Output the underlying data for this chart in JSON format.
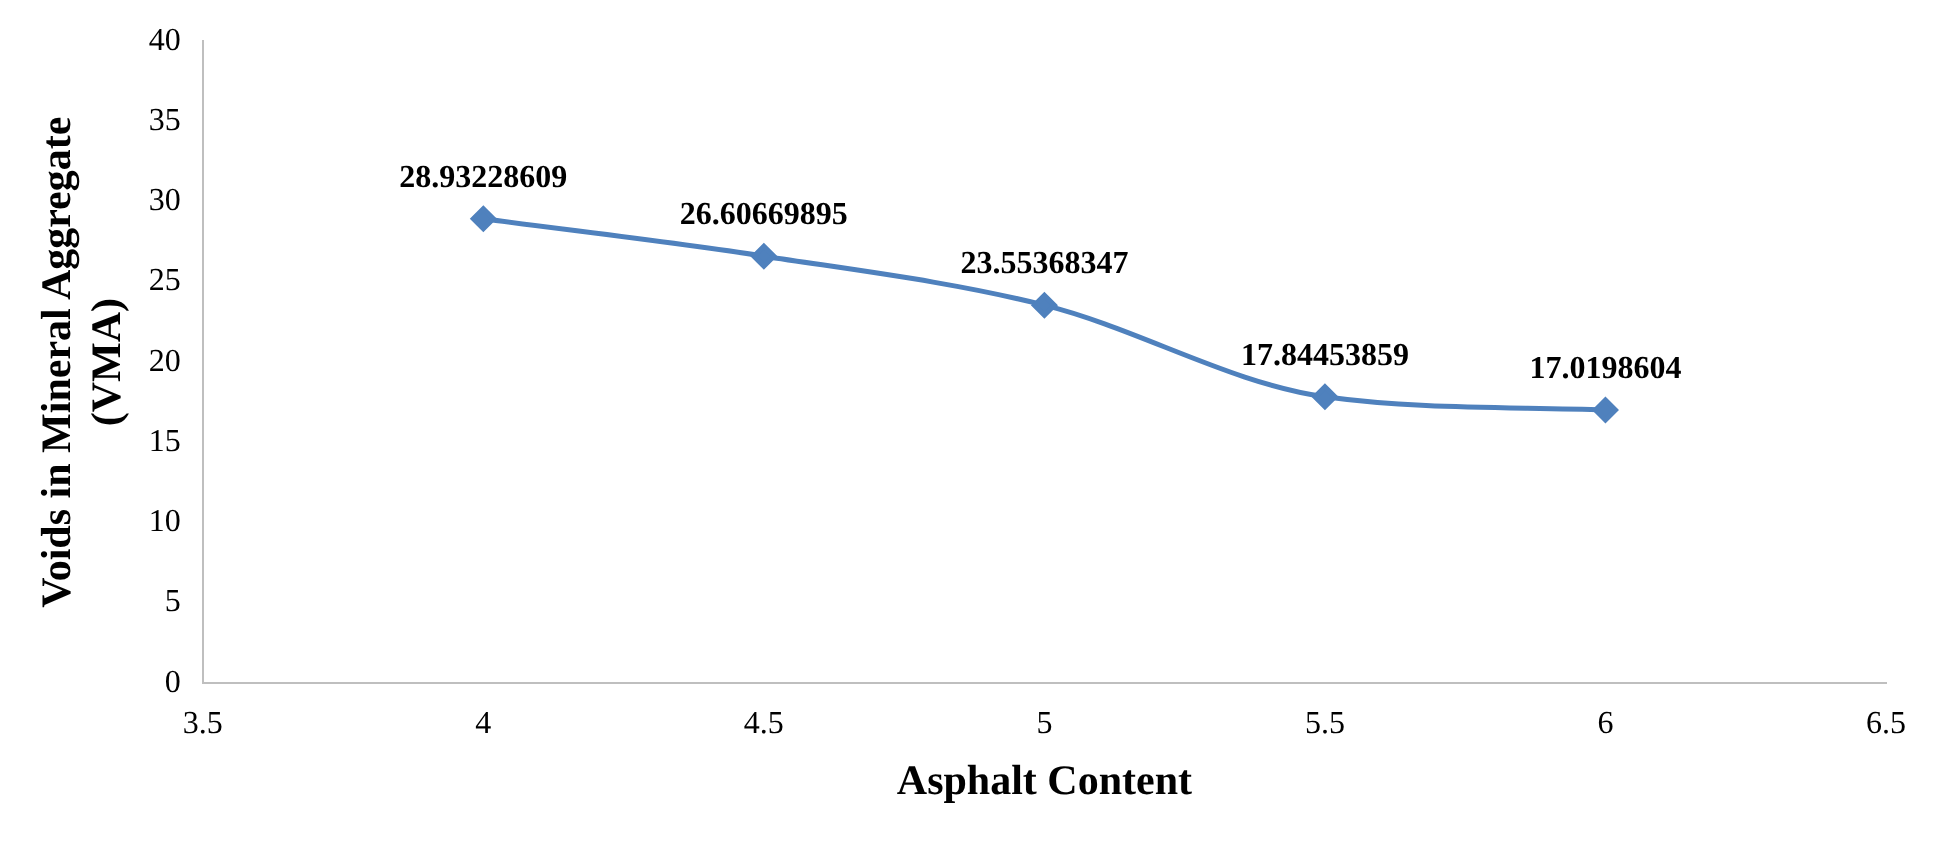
{
  "chart_data": {
    "type": "line",
    "xlabel": "Asphalt Content",
    "ylabel": "Voids in Mineral Aggregate (VMA)",
    "x": [
      4,
      4.5,
      5,
      5.5,
      6
    ],
    "series": [
      {
        "color": "#4f81bd",
        "values": [
          28.93228609,
          26.60669895,
          23.55368347,
          17.84453859,
          17.0198604
        ]
      }
    ],
    "xlim": [
      3.5,
      6.5
    ],
    "xticks": [
      3.5,
      4,
      4.5,
      5,
      5.5,
      6,
      6.5
    ],
    "ylim": [
      0,
      40
    ],
    "yticks": [
      0,
      5,
      10,
      15,
      20,
      25,
      30,
      35,
      40
    ],
    "grid": false,
    "legend": false,
    "marker": "diamond",
    "line_style": "solid",
    "data_labels": true
  }
}
